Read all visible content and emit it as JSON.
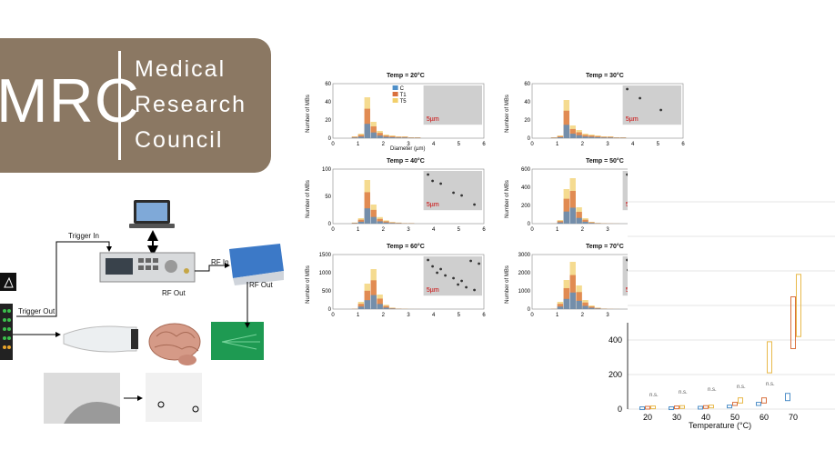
{
  "logo": {
    "abbrev": "MRC",
    "line1": "Medical",
    "line2": "Research",
    "line3": "Council"
  },
  "diagram": {
    "trigger_in": "Trigger In",
    "trigger_out": "Trigger Out",
    "rf_out_1": "RF Out",
    "rf_in": "RF In",
    "rf_out_2": "RF Out"
  },
  "histograms": {
    "ylabel": "Number of MBs",
    "xlabel": "Diameter (µm)",
    "scale_bar": "5µm",
    "legend": [
      "C",
      "T1",
      "T5"
    ],
    "colors": {
      "C": "#4f8fc8",
      "T1": "#d9703e",
      "T5": "#f2cf6b"
    },
    "panels": [
      {
        "title": "Temp = 20°C",
        "yticks": [
          "0",
          "20",
          "40",
          "60"
        ],
        "ymax": 60
      },
      {
        "title": "Temp = 30°C",
        "yticks": [
          "0",
          "20",
          "40",
          "60"
        ],
        "ymax": 60
      },
      {
        "title": "Temp = 40°C",
        "yticks": [
          "0",
          "50",
          "100"
        ],
        "ymax": 100
      },
      {
        "title": "Temp = 50°C",
        "yticks": [
          "0",
          "200",
          "400",
          "600"
        ],
        "ymax": 600
      },
      {
        "title": "Temp = 60°C",
        "yticks": [
          "0",
          "500",
          "1000",
          "1500"
        ],
        "ymax": 1500
      },
      {
        "title": "Temp = 70°C",
        "yticks": [
          "0",
          "1000",
          "2000",
          "3000"
        ],
        "ymax": 3000
      }
    ],
    "xticks": [
      "0",
      "1",
      "2",
      "3",
      "4",
      "5",
      "6"
    ]
  },
  "boxplot": {
    "xlabel": "Temperature (°C)",
    "xticks": [
      "20",
      "30",
      "40",
      "50",
      "60",
      "70"
    ],
    "yticks": [
      "0",
      "200",
      "400"
    ],
    "ns_label": "n.s."
  }
}
